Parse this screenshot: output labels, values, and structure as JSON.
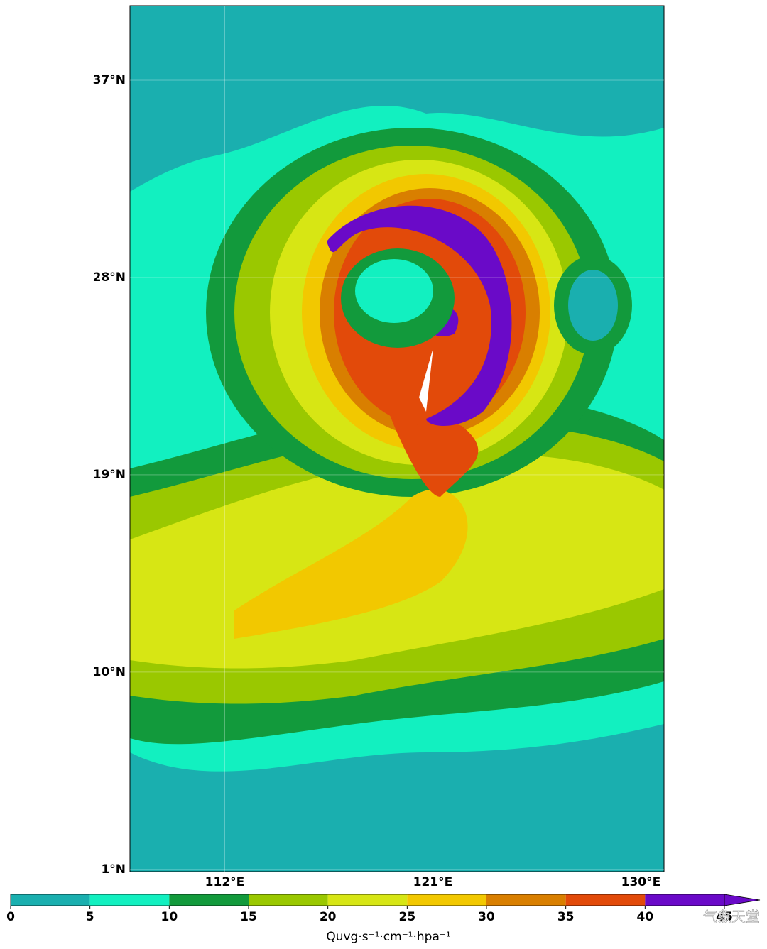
{
  "map": {
    "lat_ticks": [
      {
        "value": 37,
        "label": "37°N"
      },
      {
        "value": 28,
        "label": "28°N"
      },
      {
        "value": 19,
        "label": "19°N"
      },
      {
        "value": 10,
        "label": "10°N"
      },
      {
        "value": 1,
        "label": "1°N"
      }
    ],
    "lon_ticks": [
      {
        "value": 112,
        "label": "112°E"
      },
      {
        "value": 121,
        "label": "121°E"
      },
      {
        "value": 130,
        "label": "130°E"
      }
    ],
    "latlim": [
      0.9,
      40.4
    ],
    "lonlim": [
      107.9,
      131.0
    ]
  },
  "colorbar": {
    "bounds": [
      0,
      5,
      10,
      15,
      20,
      25,
      30,
      35,
      40,
      45
    ],
    "colors": [
      "#1aafaf",
      "#12f0c0",
      "#129a3c",
      "#9ac800",
      "#d7e614",
      "#f2c800",
      "#d97f00",
      "#e24a0a",
      "#6a0ac8"
    ],
    "extend": "max",
    "ticks": [
      0,
      5,
      10,
      15,
      20,
      25,
      30,
      35,
      40,
      45
    ],
    "label": "Quvg·s⁻¹·cm⁻¹·hpa⁻¹"
  },
  "watermark": "气象天堂"
}
